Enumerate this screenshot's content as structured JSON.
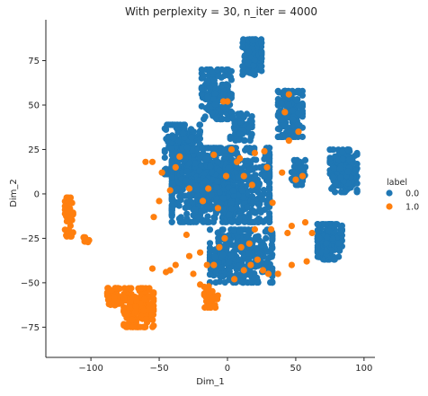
{
  "chart_data": {
    "type": "scatter",
    "title": "With perplexity = 30, n_iter = 4000",
    "xlabel": "Dim_1",
    "ylabel": "Dim_2",
    "xlim": [
      -133,
      108
    ],
    "ylim": [
      -92,
      98
    ],
    "xticks": [
      -100,
      -50,
      0,
      50,
      100
    ],
    "yticks": [
      -75,
      -50,
      -25,
      0,
      25,
      50,
      75
    ],
    "grid": false,
    "legend": {
      "title": "label",
      "placement": "right",
      "entries": [
        {
          "label": "0.0",
          "color": "#1f77b4"
        },
        {
          "label": "1.0",
          "color": "#ff7f0e"
        }
      ]
    },
    "series": [
      {
        "name": "0.0",
        "color": "#1f77b4",
        "clusters": [
          {
            "cx": 18,
            "cy": 77,
            "rx": 7,
            "ry": 10,
            "n": 130
          },
          {
            "cx": -8,
            "cy": 56,
            "rx": 11,
            "ry": 14,
            "n": 180
          },
          {
            "cx": 46,
            "cy": 45,
            "rx": 9,
            "ry": 13,
            "n": 180
          },
          {
            "cx": 10,
            "cy": 38,
            "rx": 8,
            "ry": 8,
            "n": 70
          },
          {
            "cx": -33,
            "cy": 25,
            "rx": 13,
            "ry": 14,
            "n": 200
          },
          {
            "cx": -5,
            "cy": 5,
            "rx": 36,
            "ry": 21,
            "n": 950
          },
          {
            "cx": 52,
            "cy": 12,
            "rx": 5,
            "ry": 7,
            "n": 60
          },
          {
            "cx": 85,
            "cy": 13,
            "rx": 10,
            "ry": 12,
            "n": 200
          },
          {
            "cx": 75,
            "cy": -27,
            "rx": 9,
            "ry": 10,
            "n": 200
          },
          {
            "cx": 10,
            "cy": -35,
            "rx": 23,
            "ry": 15,
            "n": 350
          }
        ]
      },
      {
        "name": "1.0",
        "color": "#ff7f0e",
        "clusters": [
          {
            "cx": -116,
            "cy": -13,
            "rx": 3,
            "ry": 11,
            "n": 45
          },
          {
            "cx": -104,
            "cy": -26,
            "rx": 3,
            "ry": 1.5,
            "n": 12
          },
          {
            "cx": -65,
            "cy": -64,
            "rx": 11,
            "ry": 11,
            "n": 170
          },
          {
            "cx": -82,
            "cy": -58,
            "rx": 6,
            "ry": 5,
            "n": 40
          },
          {
            "cx": -12,
            "cy": -58,
            "rx": 5,
            "ry": 6,
            "n": 40
          }
        ],
        "points": [
          [
            -55,
            -42
          ],
          [
            -42,
            -43
          ],
          [
            -38,
            -40
          ],
          [
            -45,
            -44
          ],
          [
            -25,
            -45
          ],
          [
            -20,
            -51
          ],
          [
            -10,
            -40
          ],
          [
            -6,
            -30
          ],
          [
            -2,
            -25
          ],
          [
            5,
            -48
          ],
          [
            12,
            -43
          ],
          [
            17,
            -40
          ],
          [
            22,
            -37
          ],
          [
            26,
            -43
          ],
          [
            30,
            -45
          ],
          [
            37,
            -45
          ],
          [
            47,
            -40
          ],
          [
            58,
            -38
          ],
          [
            62,
            -22
          ],
          [
            57,
            -16
          ],
          [
            47,
            -18
          ],
          [
            44,
            -22
          ],
          [
            32,
            -20
          ],
          [
            20,
            -20
          ],
          [
            -28,
            -35
          ],
          [
            -42,
            2
          ],
          [
            -28,
            3
          ],
          [
            -18,
            -4
          ],
          [
            -14,
            3
          ],
          [
            -7,
            -8
          ],
          [
            -1,
            10
          ],
          [
            7,
            18
          ],
          [
            18,
            5
          ],
          [
            29,
            15
          ],
          [
            40,
            12
          ],
          [
            50,
            8
          ],
          [
            55,
            10
          ],
          [
            -48,
            12
          ],
          [
            -55,
            18
          ],
          [
            -50,
            -4
          ],
          [
            -38,
            15
          ],
          [
            -10,
            22
          ],
          [
            3,
            25
          ],
          [
            9,
            20
          ],
          [
            20,
            23
          ],
          [
            27,
            24
          ],
          [
            12,
            10
          ],
          [
            33,
            -5
          ],
          [
            -30,
            -23
          ],
          [
            -20,
            -33
          ],
          [
            -15,
            -40
          ],
          [
            10,
            -30
          ],
          [
            16,
            -28
          ],
          [
            0,
            52
          ],
          [
            -3,
            52
          ],
          [
            45,
            56
          ],
          [
            42,
            46
          ],
          [
            52,
            35
          ],
          [
            45,
            30
          ],
          [
            -35,
            21
          ],
          [
            -60,
            18
          ],
          [
            -54,
            -13
          ]
        ]
      }
    ]
  }
}
